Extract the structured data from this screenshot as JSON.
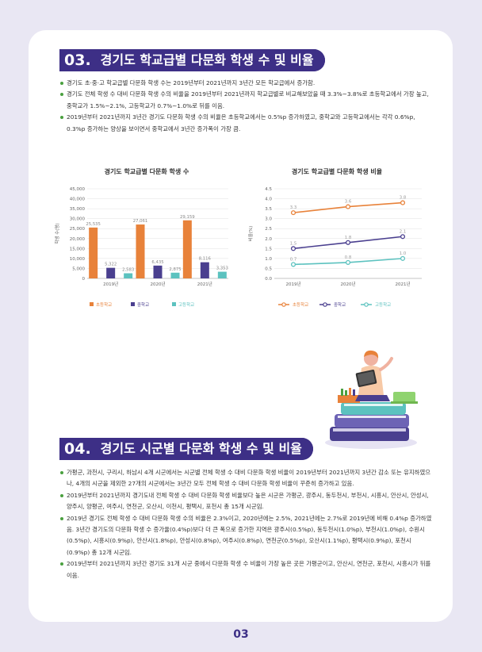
{
  "section3": {
    "number": "03.",
    "title": "경기도 학교급별 다문화 학생 수 및 비율",
    "bullets": [
      "경기도 초·중·고 학교급별 다문화 학생 수는 2019년부터 2021년까지 3년간 모든 학교급에서 증가함.",
      "경기도 전체 학생 수 대비 다문화 학생 수의 비율을 2019년부터 2021년까지 학교급별로 비교해보았을 때 3.3%~3.8%로 초등학교에서 가장 높고, 중학교가 1.5%~2.1%, 고등학교가 0.7%~1.0%로 뒤를 이음.",
      "2019년부터 2021년까지 3년간 경기도 다문화 학생 수의 비율은 초등학교에서는 0.5%p 증가하였고, 중학교와 고등학교에서는 각각 0.6%p, 0.3%p 증가하는 양상을 보이면서 중학교에서 3년간 증가폭이 가장 큼."
    ]
  },
  "chart_data": [
    {
      "type": "bar",
      "title": "경기도 학교급별 다문화 학생 수",
      "ylabel": "학생 수(명)",
      "categories": [
        "2019년",
        "2020년",
        "2021년"
      ],
      "y_ticks": [
        "0",
        "5,000",
        "10,000",
        "15,000",
        "20,000",
        "25,000",
        "30,000",
        "35,000",
        "40,000",
        "45,000"
      ],
      "ylim": [
        0,
        45000
      ],
      "series": [
        {
          "name": "초등학교",
          "color": "#e8823a",
          "values": [
            25535,
            27061,
            29159
          ],
          "labels": [
            "25,535",
            "27,061",
            "29,159"
          ]
        },
        {
          "name": "중학교",
          "color": "#4a3f8f",
          "values": [
            5322,
            6435,
            8116
          ],
          "labels": [
            "5,322",
            "6,435",
            "8,116"
          ]
        },
        {
          "name": "고등학교",
          "color": "#5cc2bf",
          "values": [
            2583,
            2875,
            3353
          ],
          "labels": [
            "2,583",
            "2,875",
            "3,353"
          ]
        }
      ],
      "legend": "bottom"
    },
    {
      "type": "line",
      "title": "경기도 학교급별 다문화 학생 비율",
      "ylabel": "비율(%)",
      "categories": [
        "2019년",
        "2020년",
        "2021년"
      ],
      "y_ticks": [
        "0.0",
        "0.5",
        "1.0",
        "1.5",
        "2.0",
        "2.5",
        "3.0",
        "3.5",
        "4.0",
        "4.5"
      ],
      "ylim": [
        0,
        4.5
      ],
      "series": [
        {
          "name": "초등학교",
          "color": "#e8823a",
          "values": [
            3.3,
            3.6,
            3.8
          ],
          "labels": [
            "3.3",
            "3.6",
            "3.8"
          ]
        },
        {
          "name": "중학교",
          "color": "#4a3f8f",
          "values": [
            1.5,
            1.8,
            2.1
          ],
          "labels": [
            "1.5",
            "1.8",
            "2.1"
          ]
        },
        {
          "name": "고등학교",
          "color": "#5cc2bf",
          "values": [
            0.7,
            0.8,
            1.0
          ],
          "labels": [
            "0.7",
            "0.8",
            "1.0"
          ]
        }
      ],
      "legend": "bottom"
    }
  ],
  "section4": {
    "number": "04.",
    "title": "경기도 시군별 다문화 학생 수 및 비율",
    "bullets": [
      "가평군, 과천시, 구리시, 하남시 4개 시군에서는 시군별 전체 학생 수 대비 다문화 학생 비율이 2019년부터 2021년까지 3년간 감소 또는 유지하였으나, 4개의 시군을 제외한 27개의 시군에서는 3년간 모두 전체 학생 수 대비 다문화 학생 비율이 꾸준히 증가하고 있음.",
      "2019년부터 2021년까지 경기도내 전체 학생 수 대비 다문화 학생 비율보다 높은 시군은 가평군, 광주시, 동두천시, 부천시, 시흥시, 안산시, 안성시, 양주시, 양평군, 여주시, 연천군, 오산시, 이천시, 평택시, 포천시 총 15개 시군임.",
      "2019년 경기도 전체 학생 수 대비 다문화 학생 수의 비율은 2.3%이고, 2020년에는 2.5%, 2021년에는 2.7%로 2019년에 비해 0.4%p 증가하였음. 3년간 경기도의 다문화 학생 수 증가율(0.4%p)보다 더 큰 폭으로 증가한 지역은 광주시(0.5%p), 동두천시(1.0%p), 부천시(1.0%p), 수원시(0.5%p), 시흥시(0.9%p), 안산시(1.8%p), 안성시(0.8%p), 여주시(0.8%p), 연천군(0.5%p), 오산시(1.1%p), 평택시(0.9%p), 포천시(0.9%p) 총 12개 시군임.",
      "2019년부터 2021년까지 3년간 경기도 31개 시군 중에서 다문화 학생 수 비율이 가장 높은 곳은 가평군이고, 안산시, 연천군, 포천시, 시흥시가 뒤를 이음."
    ]
  },
  "page_number": "03"
}
